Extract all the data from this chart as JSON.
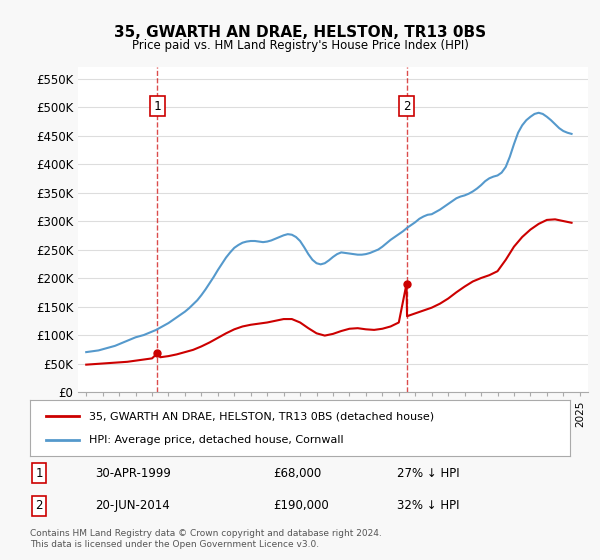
{
  "title": "35, GWARTH AN DRAE, HELSTON, TR13 0BS",
  "subtitle": "Price paid vs. HM Land Registry's House Price Index (HPI)",
  "legend_line1": "35, GWARTH AN DRAE, HELSTON, TR13 0BS (detached house)",
  "legend_line2": "HPI: Average price, detached house, Cornwall",
  "purchase1_label": "1",
  "purchase1_date": "30-APR-1999",
  "purchase1_price": "£68,000",
  "purchase1_hpi": "27% ↓ HPI",
  "purchase1_x": 1999.33,
  "purchase1_y": 68000,
  "purchase2_label": "2",
  "purchase2_date": "20-JUN-2014",
  "purchase2_price": "£190,000",
  "purchase2_hpi": "32% ↓ HPI",
  "purchase2_x": 2014.47,
  "purchase2_y": 190000,
  "ylim": [
    0,
    570000
  ],
  "xlim": [
    1994.5,
    2025.5
  ],
  "ylabel_ticks": [
    0,
    50000,
    100000,
    150000,
    200000,
    250000,
    300000,
    350000,
    400000,
    450000,
    500000,
    550000
  ],
  "ylabel_labels": [
    "£0",
    "£50K",
    "£100K",
    "£150K",
    "£200K",
    "£250K",
    "£300K",
    "£350K",
    "£400K",
    "£450K",
    "£500K",
    "£550K"
  ],
  "red_color": "#cc0000",
  "blue_color": "#5599cc",
  "background_color": "#f8f8f8",
  "plot_bg_color": "#ffffff",
  "grid_color": "#dddddd",
  "footer_text": "Contains HM Land Registry data © Crown copyright and database right 2024.\nThis data is licensed under the Open Government Licence v3.0.",
  "hpi_years": [
    1995,
    1995.25,
    1995.5,
    1995.75,
    1996,
    1996.25,
    1996.5,
    1996.75,
    1997,
    1997.25,
    1997.5,
    1997.75,
    1998,
    1998.25,
    1998.5,
    1998.75,
    1999,
    1999.25,
    1999.5,
    1999.75,
    2000,
    2000.25,
    2000.5,
    2000.75,
    2001,
    2001.25,
    2001.5,
    2001.75,
    2002,
    2002.25,
    2002.5,
    2002.75,
    2003,
    2003.25,
    2003.5,
    2003.75,
    2004,
    2004.25,
    2004.5,
    2004.75,
    2005,
    2005.25,
    2005.5,
    2005.75,
    2006,
    2006.25,
    2006.5,
    2006.75,
    2007,
    2007.25,
    2007.5,
    2007.75,
    2008,
    2008.25,
    2008.5,
    2008.75,
    2009,
    2009.25,
    2009.5,
    2009.75,
    2010,
    2010.25,
    2010.5,
    2010.75,
    2011,
    2011.25,
    2011.5,
    2011.75,
    2012,
    2012.25,
    2012.5,
    2012.75,
    2013,
    2013.25,
    2013.5,
    2013.75,
    2014,
    2014.25,
    2014.5,
    2014.75,
    2015,
    2015.25,
    2015.5,
    2015.75,
    2016,
    2016.25,
    2016.5,
    2016.75,
    2017,
    2017.25,
    2017.5,
    2017.75,
    2018,
    2018.25,
    2018.5,
    2018.75,
    2019,
    2019.25,
    2019.5,
    2019.75,
    2020,
    2020.25,
    2020.5,
    2020.75,
    2021,
    2021.25,
    2021.5,
    2021.75,
    2022,
    2022.25,
    2022.5,
    2022.75,
    2023,
    2023.25,
    2023.5,
    2023.75,
    2024,
    2024.25,
    2024.5
  ],
  "hpi_values": [
    70000,
    71000,
    72000,
    73000,
    75000,
    77000,
    79000,
    81000,
    84000,
    87000,
    90000,
    93000,
    96000,
    98000,
    100000,
    103000,
    106000,
    109000,
    113000,
    117000,
    121000,
    126000,
    131000,
    136000,
    141000,
    147000,
    154000,
    161000,
    170000,
    180000,
    191000,
    202000,
    214000,
    225000,
    236000,
    245000,
    253000,
    258000,
    262000,
    264000,
    265000,
    265000,
    264000,
    263000,
    264000,
    266000,
    269000,
    272000,
    275000,
    277000,
    276000,
    272000,
    265000,
    254000,
    242000,
    232000,
    226000,
    224000,
    226000,
    231000,
    237000,
    242000,
    245000,
    244000,
    243000,
    242000,
    241000,
    241000,
    242000,
    244000,
    247000,
    250000,
    255000,
    261000,
    267000,
    272000,
    277000,
    282000,
    288000,
    293000,
    298000,
    304000,
    308000,
    311000,
    312000,
    316000,
    320000,
    325000,
    330000,
    335000,
    340000,
    343000,
    345000,
    348000,
    352000,
    357000,
    363000,
    370000,
    375000,
    378000,
    380000,
    385000,
    395000,
    413000,
    435000,
    455000,
    468000,
    477000,
    483000,
    488000,
    490000,
    488000,
    483000,
    477000,
    470000,
    463000,
    458000,
    455000,
    453000
  ],
  "red_years": [
    1995,
    1995.5,
    1996,
    1996.5,
    1997,
    1997.5,
    1998,
    1998.5,
    1999,
    1999.33,
    1999.5,
    2000,
    2000.5,
    2001,
    2001.5,
    2002,
    2002.5,
    2003,
    2003.5,
    2004,
    2004.5,
    2005,
    2005.5,
    2006,
    2006.5,
    2007,
    2007.5,
    2008,
    2008.5,
    2009,
    2009.5,
    2010,
    2010.5,
    2011,
    2011.5,
    2012,
    2012.5,
    2013,
    2013.5,
    2014,
    2014.47,
    2014.5,
    2015,
    2015.5,
    2016,
    2016.5,
    2017,
    2017.5,
    2018,
    2018.5,
    2019,
    2019.5,
    2020,
    2020.5,
    2021,
    2021.5,
    2022,
    2022.5,
    2023,
    2023.5,
    2024,
    2024.5
  ],
  "red_values": [
    48000,
    49000,
    50000,
    51000,
    52000,
    53000,
    55000,
    57000,
    59000,
    68000,
    61000,
    63000,
    66000,
    70000,
    74000,
    80000,
    87000,
    95000,
    103000,
    110000,
    115000,
    118000,
    120000,
    122000,
    125000,
    128000,
    128000,
    122000,
    112000,
    103000,
    99000,
    102000,
    107000,
    111000,
    112000,
    110000,
    109000,
    111000,
    115000,
    122000,
    190000,
    133000,
    138000,
    143000,
    148000,
    155000,
    164000,
    175000,
    185000,
    194000,
    200000,
    205000,
    212000,
    232000,
    255000,
    272000,
    285000,
    295000,
    302000,
    303000,
    300000,
    297000
  ]
}
